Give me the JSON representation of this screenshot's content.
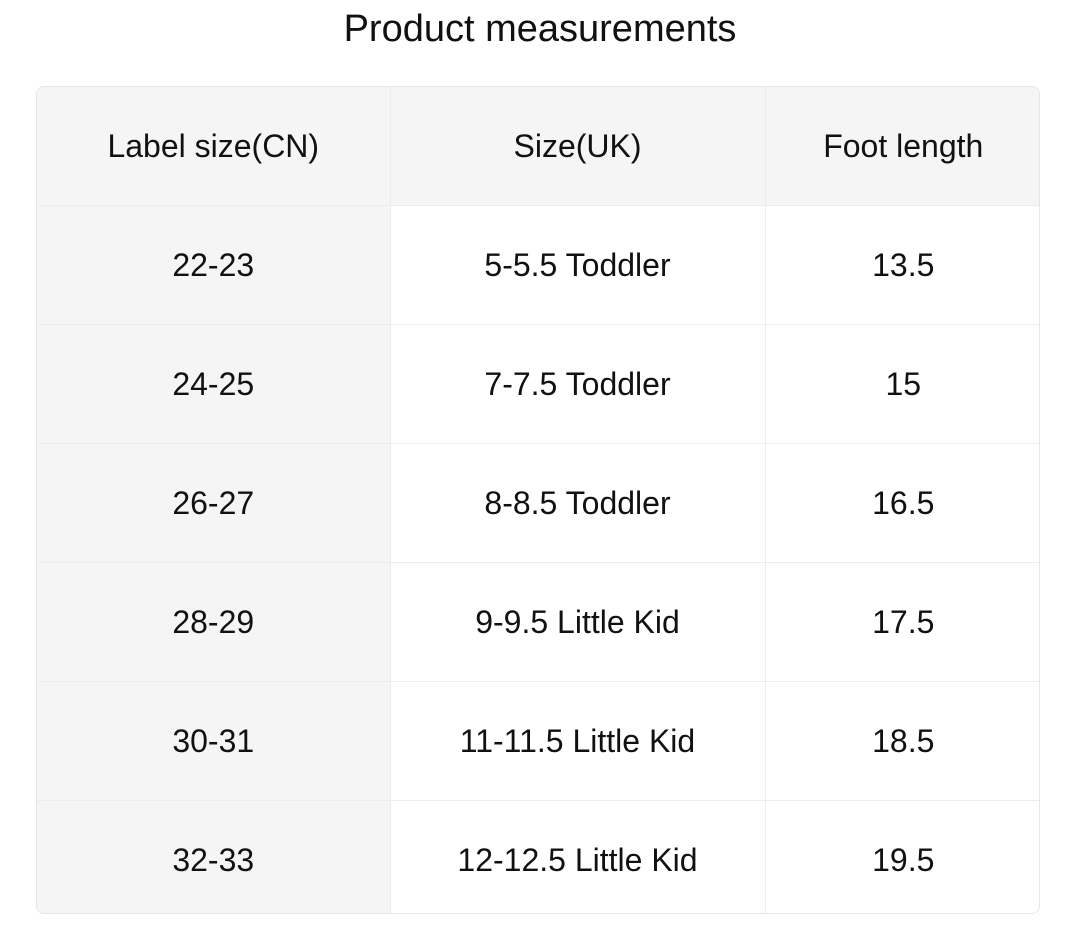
{
  "title": "Product measurements",
  "table": {
    "headers": [
      "Label size(CN)",
      "Size(UK)",
      "Foot length"
    ],
    "rows": [
      [
        "22-23",
        "5-5.5 Toddler",
        "13.5"
      ],
      [
        "24-25",
        "7-7.5 Toddler",
        "15"
      ],
      [
        "26-27",
        "8-8.5 Toddler",
        "16.5"
      ],
      [
        "28-29",
        "9-9.5 Little Kid",
        "17.5"
      ],
      [
        "30-31",
        "11-11.5 Little Kid",
        "18.5"
      ],
      [
        "32-33",
        "12-12.5 Little Kid",
        "19.5"
      ]
    ]
  }
}
